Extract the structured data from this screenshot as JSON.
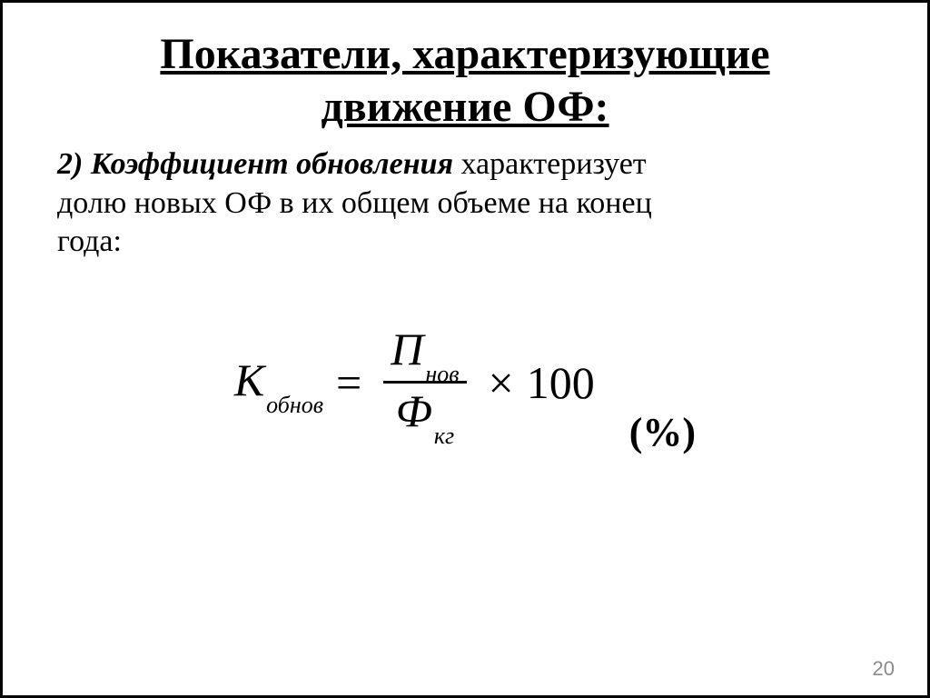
{
  "title_line1": "Показатели, характеризующие",
  "title_line2": "движение ОФ:",
  "body": {
    "lead": "2) ",
    "term": "Коэффициент обновления",
    "rest1": " характеризует",
    "line2": "долю новых ОФ в их общем объеме на конец",
    "line3": "года:"
  },
  "formula": {
    "lhs_var": "К",
    "lhs_sub": "обнов",
    "eq": "=",
    "num_var": "П",
    "num_sub": "нов",
    "den_var": "Ф",
    "den_sub": "кг",
    "times": "×",
    "hundred": "100",
    "unit": "(%)"
  },
  "page_number": "20",
  "colors": {
    "text": "#000000",
    "background": "#ffffff",
    "page_num": "#8a8a8a",
    "border": "#000000"
  }
}
